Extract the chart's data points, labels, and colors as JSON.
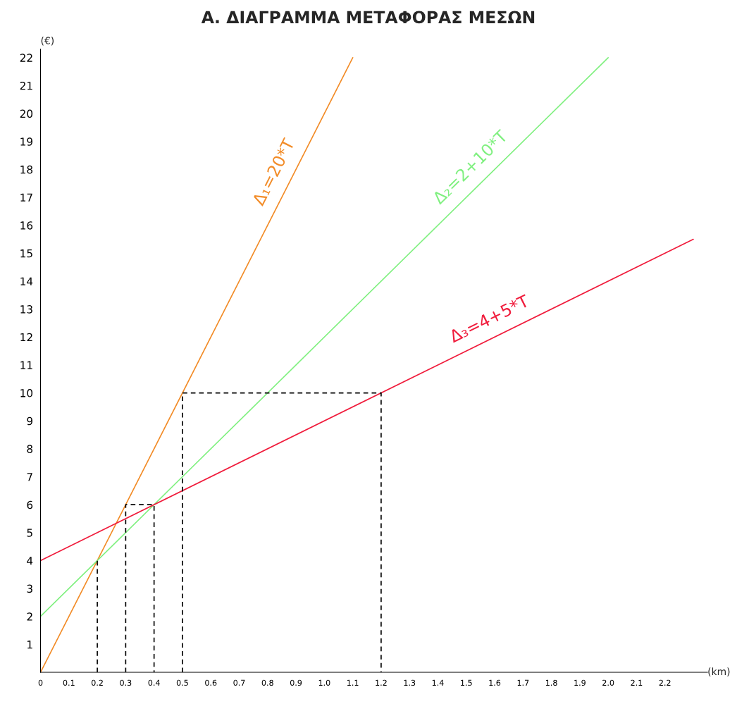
{
  "chart_data": {
    "type": "line",
    "title": "Α. ΔΙΑΓΡΑΜΜΑ ΜΕΤΑΦΟΡΑΣ ΜΕΣΩΝ",
    "xlabel": "(km)",
    "ylabel": "(€)",
    "series": [
      {
        "color": "#f28c28",
        "x": [
          0,
          1.1
        ],
        "values": [
          0,
          22
        ]
      },
      {
        "color": "#80f080",
        "x": [
          0,
          2.0
        ],
        "values": [
          2,
          22
        ]
      },
      {
        "color": "#f01c3c",
        "x": [
          0,
          2.3
        ],
        "values": [
          4,
          15.5
        ]
      },
      {
        "color": "#000000",
        "line_style": "dashed",
        "x": [
          0.2,
          0.2
        ],
        "values": [
          0,
          4
        ]
      },
      {
        "color": "#000000",
        "line_style": "dashed",
        "x": [
          0.3,
          0.3,
          0.4,
          0.4
        ],
        "values": [
          0,
          6,
          6,
          0
        ]
      },
      {
        "color": "#000000",
        "line_style": "dashed",
        "x": [
          0.5,
          0.5,
          1.2,
          1.2
        ],
        "values": [
          0,
          10,
          10,
          0
        ]
      }
    ],
    "annotations": [
      "Δ₁=20*T",
      "Δ₂=2+10*T",
      "Δ₃=4+5*T"
    ],
    "xlim": [
      0,
      2.35
    ],
    "ylim": [
      0,
      22.3
    ],
    "xticks": [
      0,
      0.1,
      0.2,
      0.3,
      0.4,
      0.5,
      0.6,
      0.7,
      0.8,
      0.9,
      {
        "value": 1,
        "label": "1.0"
      },
      1.1,
      1.2,
      1.3,
      1.4,
      1.5,
      1.6,
      1.7,
      1.8,
      1.9,
      {
        "value": 2,
        "label": "2.0"
      },
      2.1,
      2.2
    ],
    "yticks": [
      1,
      2,
      3,
      4,
      5,
      6,
      7,
      8,
      9,
      10,
      11,
      12,
      13,
      14,
      15,
      16,
      17,
      18,
      19,
      20,
      21,
      22
    ],
    "grid": false,
    "legend": false,
    "marker": "none"
  }
}
